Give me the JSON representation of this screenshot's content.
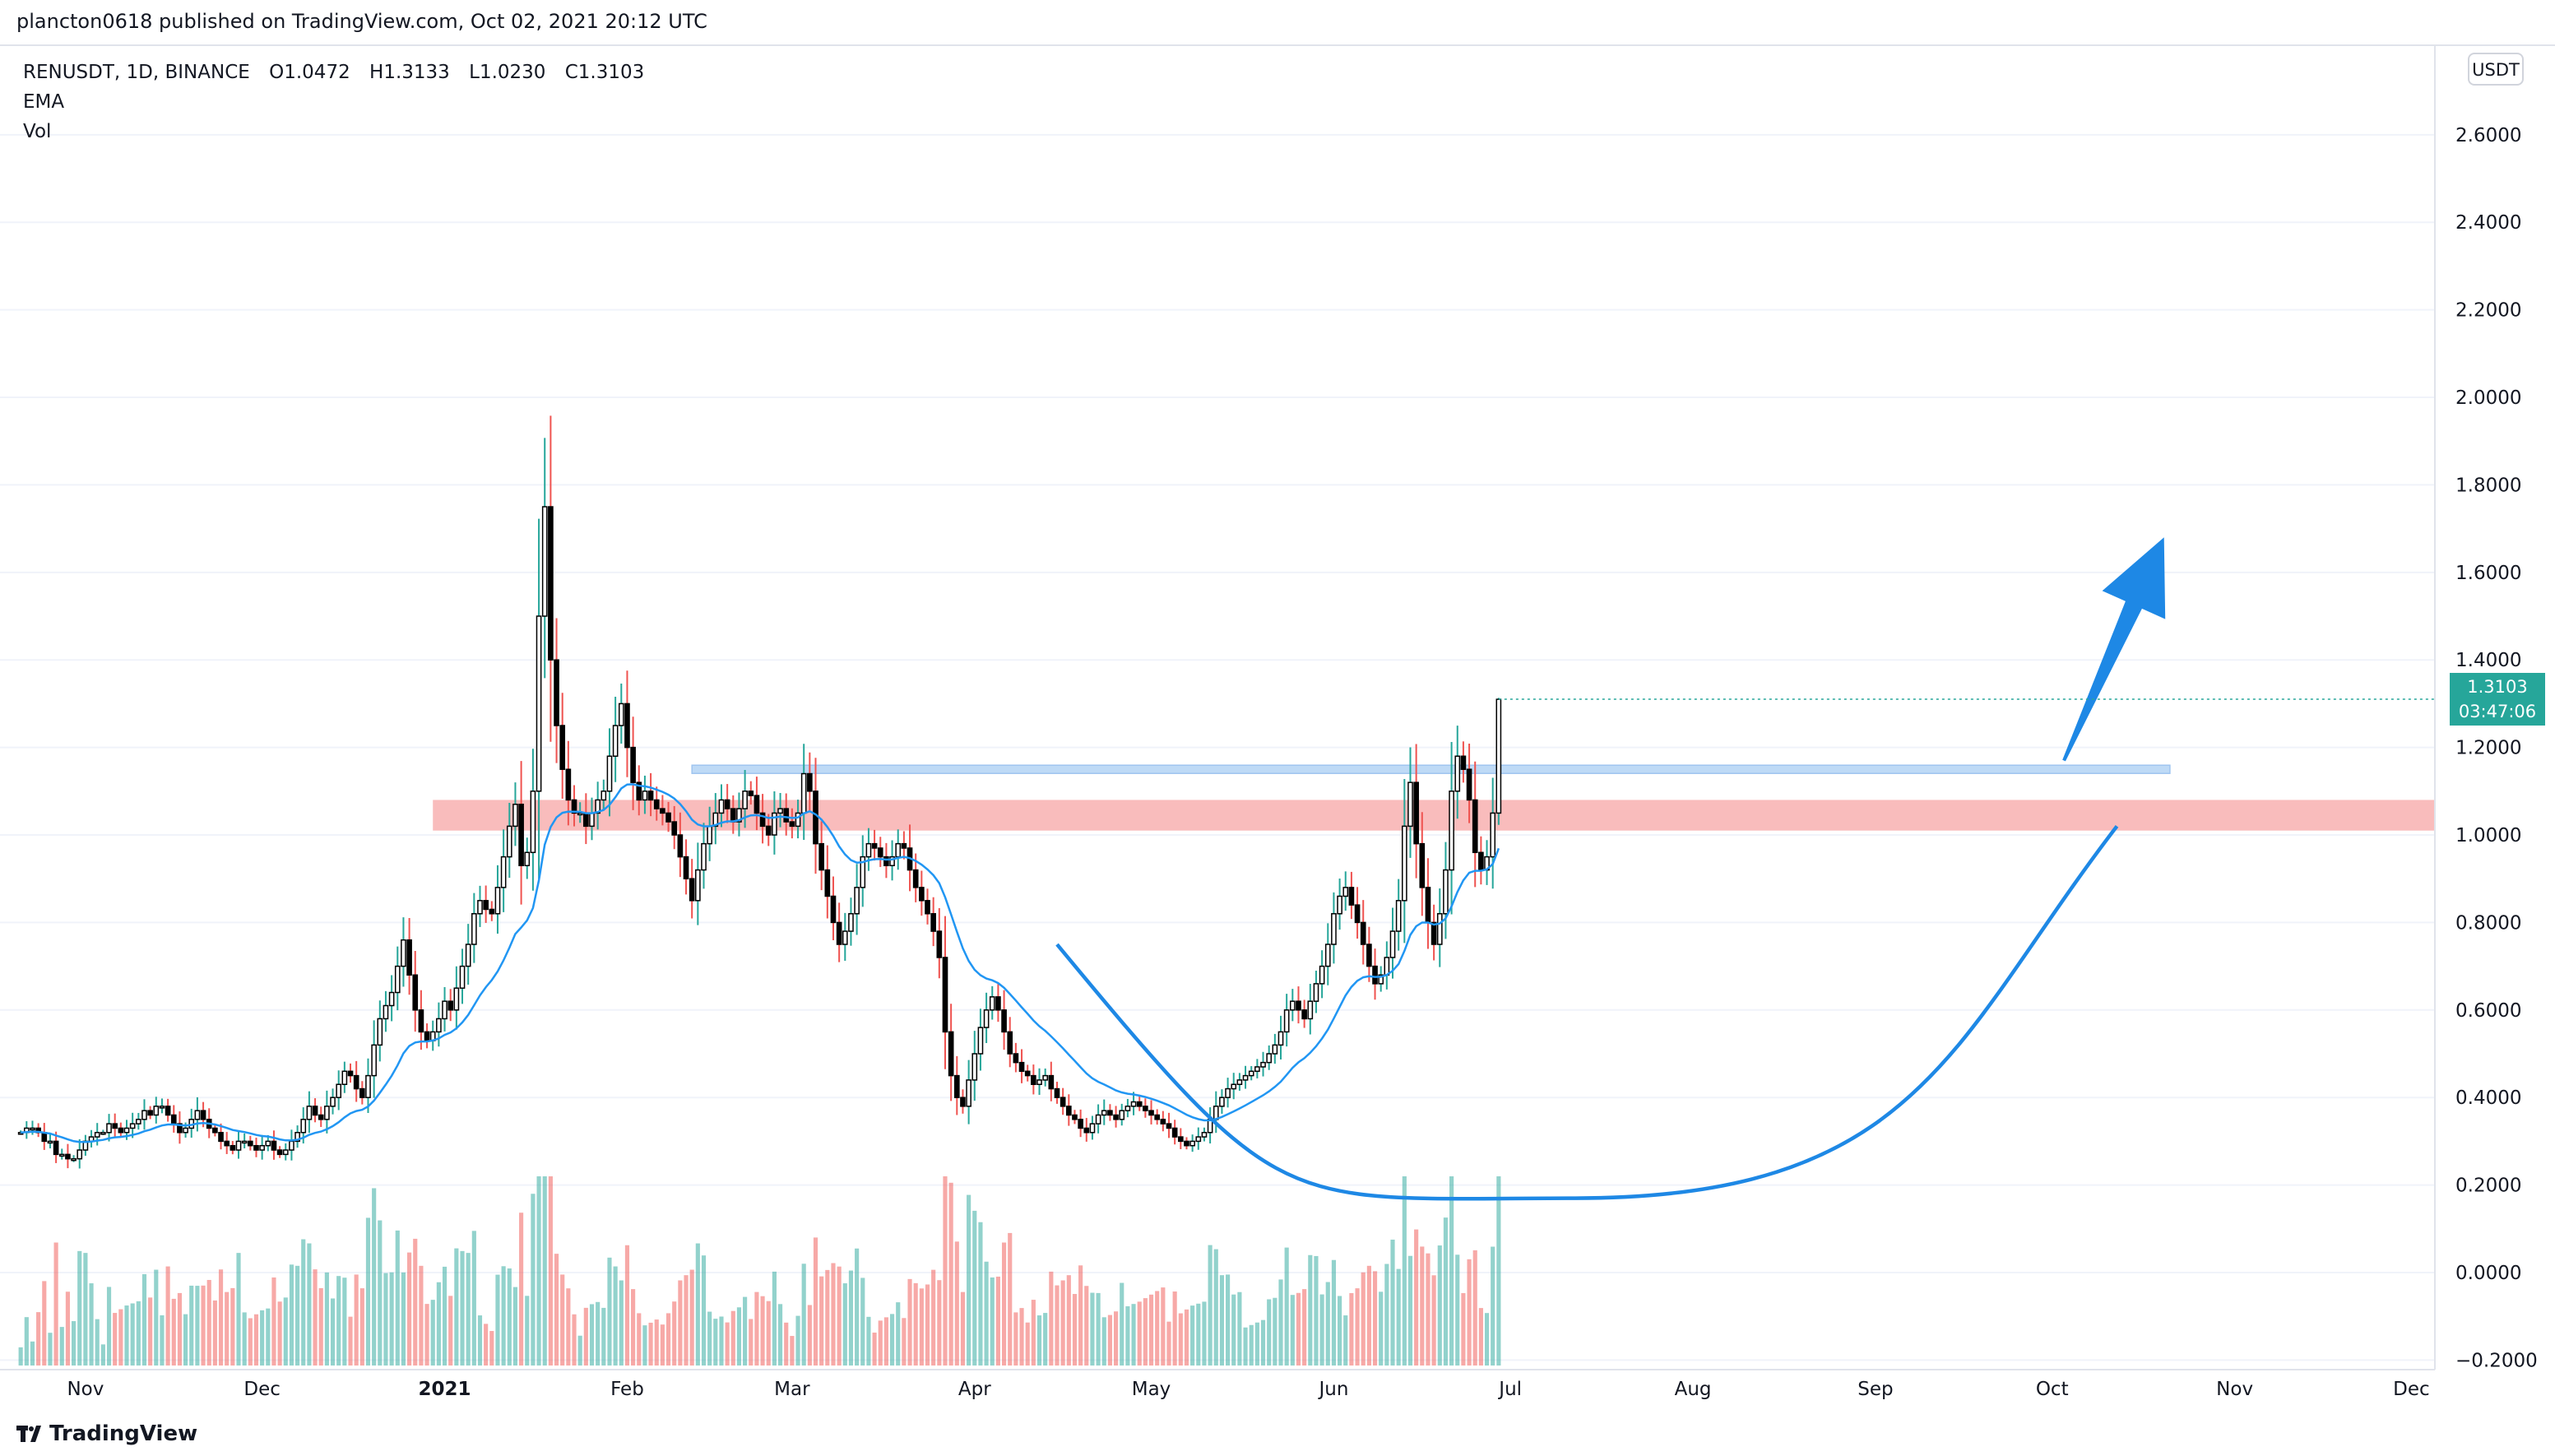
{
  "header": {
    "published": "plancton0618 published on TradingView.com, Oct 02, 2021 20:12 UTC"
  },
  "legend": {
    "symbol": "RENUSDT, 1D, BINANCE",
    "open": "O1.0472",
    "high": "H1.3133",
    "low": "L1.0230",
    "close": "C1.3103",
    "indicator_1": "EMA",
    "indicator_2": "Vol"
  },
  "axis": {
    "unit": "USDT",
    "last_price": "1.3103",
    "countdown": "03:47:06"
  },
  "footer": {
    "brand": "TradingView"
  },
  "colors": {
    "up": "#26a69a",
    "down": "#ef5350",
    "ema": "#2196f3",
    "resistance_zone": "#f7a6a6",
    "highlight_zone": "#b3d4f5",
    "arrow": "#1e88e5"
  },
  "chart_data": {
    "type": "candlestick",
    "symbol": "RENUSDT",
    "interval": "1D",
    "exchange": "BINANCE",
    "ohlc_last": {
      "open": 1.0472,
      "high": 1.3133,
      "low": 1.023,
      "close": 1.3103
    },
    "y_ticks": [
      2.6,
      2.4,
      2.2,
      2.0,
      1.8,
      1.6,
      1.4,
      1.2,
      1.0,
      0.8,
      0.6,
      0.4,
      0.2,
      0.0,
      -0.2
    ],
    "y_tick_labels": [
      "2.6000",
      "2.4000",
      "2.2000",
      "2.0000",
      "1.8000",
      "1.6000",
      "1.4000",
      "1.2000",
      "1.0000",
      "0.8000",
      "0.6000",
      "0.4000",
      "0.2000",
      "0.0000",
      "−0.2000"
    ],
    "ylim": [
      -0.25,
      2.72
    ],
    "x_labels": [
      "Nov",
      "Dec",
      "2021",
      "Feb",
      "Mar",
      "Apr",
      "May",
      "Jun",
      "Jul",
      "Aug",
      "Sep",
      "Oct",
      "Nov",
      "Dec"
    ],
    "x_label_dates": [
      "2020-11-01",
      "2020-12-01",
      "2021-01-01",
      "2021-02-01",
      "2021-03-01",
      "2021-04-01",
      "2021-05-01",
      "2021-06-01",
      "2021-07-01",
      "2021-08-01",
      "2021-09-01",
      "2021-10-01",
      "2021-11-01",
      "2021-12-01"
    ],
    "date_range": [
      "2020-10-20",
      "2021-12-05"
    ],
    "series_first_date": "2020-10-21",
    "close_series": [
      0.32,
      0.33,
      0.33,
      0.32,
      0.3,
      0.3,
      0.27,
      0.27,
      0.26,
      0.26,
      0.28,
      0.3,
      0.31,
      0.32,
      0.32,
      0.34,
      0.33,
      0.32,
      0.33,
      0.34,
      0.35,
      0.37,
      0.36,
      0.38,
      0.38,
      0.36,
      0.34,
      0.32,
      0.33,
      0.35,
      0.37,
      0.35,
      0.33,
      0.32,
      0.3,
      0.29,
      0.28,
      0.3,
      0.3,
      0.29,
      0.28,
      0.29,
      0.3,
      0.28,
      0.27,
      0.28,
      0.3,
      0.32,
      0.35,
      0.38,
      0.36,
      0.35,
      0.38,
      0.4,
      0.43,
      0.46,
      0.45,
      0.42,
      0.4,
      0.45,
      0.52,
      0.58,
      0.61,
      0.64,
      0.7,
      0.76,
      0.68,
      0.6,
      0.55,
      0.53,
      0.55,
      0.58,
      0.62,
      0.6,
      0.65,
      0.7,
      0.75,
      0.82,
      0.85,
      0.83,
      0.82,
      0.88,
      0.95,
      1.02,
      1.07,
      0.93,
      0.96,
      1.1,
      1.5,
      1.75,
      1.4,
      1.25,
      1.15,
      1.08,
      1.05,
      1.05,
      1.02,
      1.05,
      1.08,
      1.1,
      1.18,
      1.25,
      1.3,
      1.2,
      1.12,
      1.08,
      1.1,
      1.08,
      1.06,
      1.05,
      1.03,
      1.0,
      0.95,
      0.9,
      0.85,
      0.92,
      0.98,
      1.02,
      1.05,
      1.08,
      1.06,
      1.03,
      1.06,
      1.1,
      1.09,
      1.05,
      1.02,
      1.0,
      1.05,
      1.06,
      1.03,
      1.02,
      1.05,
      1.14,
      1.1,
      0.98,
      0.92,
      0.86,
      0.8,
      0.75,
      0.78,
      0.82,
      0.88,
      0.95,
      0.98,
      0.97,
      0.95,
      0.93,
      0.95,
      0.98,
      0.97,
      0.92,
      0.88,
      0.85,
      0.82,
      0.78,
      0.72,
      0.55,
      0.45,
      0.4,
      0.38,
      0.44,
      0.5,
      0.56,
      0.6,
      0.63,
      0.6,
      0.55,
      0.5,
      0.48,
      0.46,
      0.45,
      0.43,
      0.44,
      0.45,
      0.42,
      0.4,
      0.38,
      0.36,
      0.35,
      0.33,
      0.32,
      0.34,
      0.36,
      0.37,
      0.36,
      0.35,
      0.37,
      0.38,
      0.39,
      0.38,
      0.37,
      0.36,
      0.35,
      0.34,
      0.33,
      0.31,
      0.3,
      0.29,
      0.3,
      0.31,
      0.32,
      0.35,
      0.38,
      0.4,
      0.42,
      0.43,
      0.44,
      0.45,
      0.46,
      0.47,
      0.48,
      0.5,
      0.52,
      0.55,
      0.6,
      0.62,
      0.6,
      0.58,
      0.62,
      0.66,
      0.7,
      0.75,
      0.82,
      0.86,
      0.88,
      0.84,
      0.8,
      0.75,
      0.7,
      0.66,
      0.68,
      0.72,
      0.78,
      0.85,
      1.02,
      1.12,
      0.98,
      0.88,
      0.8,
      0.75,
      0.82,
      0.92,
      1.1,
      1.18,
      1.15,
      1.08,
      0.96,
      0.92,
      0.95,
      1.05,
      1.31
    ],
    "series": [
      {
        "name": "EMA"
      },
      {
        "name": "Vol"
      }
    ],
    "volume_max": 0.52,
    "resistance_zone": {
      "from": 1.01,
      "to": 1.08,
      "start": "2020-12-30"
    },
    "breakout_line": {
      "level": 1.15,
      "start": "2021-02-12",
      "end": "2021-10-21"
    },
    "rounding_bottom": {
      "start_date": "2021-04-15",
      "start_price": 0.75,
      "low_date": "2021-07-12",
      "low_price": 0.17,
      "end_date": "2021-10-12",
      "end_price": 1.02
    },
    "arrow": {
      "from_date": "2021-10-03",
      "from_price": 1.17,
      "to_date": "2021-10-20",
      "to_price": 1.68
    }
  }
}
